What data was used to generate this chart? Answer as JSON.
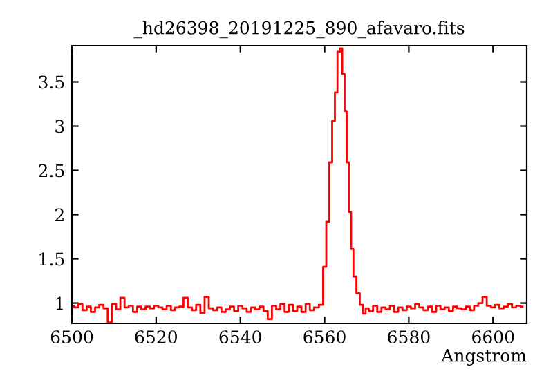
{
  "chart_data": {
    "type": "step",
    "title": "_hd26398_20191225_890_afavaro.fits",
    "xlabel": "Angstrom",
    "xlim": [
      6500,
      6608
    ],
    "ylim": [
      0.77,
      3.91
    ],
    "xticks": [
      6500,
      6520,
      6540,
      6560,
      6580,
      6600
    ],
    "yticks": [
      1,
      1.5,
      2,
      2.5,
      3,
      3.5
    ],
    "grid": false,
    "legend": false,
    "series": [
      {
        "color": "#ff0000",
        "x": [
          6500,
          6501,
          6502,
          6503,
          6504,
          6505,
          6506,
          6507,
          6508,
          6509,
          6510,
          6511,
          6512,
          6513,
          6514,
          6515,
          6516,
          6517,
          6518,
          6519,
          6520,
          6521,
          6522,
          6523,
          6524,
          6525,
          6526,
          6527,
          6528,
          6529,
          6530,
          6531,
          6532,
          6533,
          6534,
          6535,
          6536,
          6537,
          6538,
          6539,
          6540,
          6541,
          6542,
          6543,
          6544,
          6545,
          6546,
          6547,
          6548,
          6549,
          6550,
          6551,
          6552,
          6553,
          6554,
          6555,
          6556,
          6557,
          6558,
          6559.3,
          6560.0,
          6560.8,
          6561.4,
          6562.2,
          6562.7,
          6563.4,
          6563.9,
          6564.5,
          6565.0,
          6565.5,
          6566.0,
          6566.6,
          6567.1,
          6568.0,
          6568.7,
          6569.5,
          6570,
          6571,
          6572,
          6573,
          6574,
          6575,
          6576,
          6577,
          6578,
          6579,
          6580,
          6581,
          6582,
          6583,
          6584,
          6585,
          6586,
          6587,
          6588,
          6589,
          6590,
          6591,
          6592,
          6593,
          6594,
          6595,
          6596,
          6597,
          6598,
          6599,
          6600,
          6601,
          6602,
          6603,
          6604,
          6605,
          6606,
          6607
        ],
        "values": [
          0.97,
          0.95,
          0.99,
          0.92,
          0.96,
          0.9,
          0.95,
          0.98,
          0.94,
          0.78,
          0.99,
          0.93,
          1.06,
          0.95,
          0.97,
          0.9,
          0.96,
          0.93,
          0.96,
          0.94,
          0.97,
          0.95,
          0.93,
          0.97,
          0.92,
          0.95,
          0.96,
          1.06,
          0.95,
          0.92,
          0.98,
          0.89,
          1.07,
          0.94,
          0.92,
          0.95,
          0.9,
          0.93,
          0.96,
          0.91,
          0.97,
          0.94,
          0.9,
          0.95,
          0.93,
          0.96,
          0.91,
          0.82,
          0.97,
          0.93,
          0.99,
          0.9,
          0.98,
          0.91,
          0.96,
          0.9,
          0.99,
          0.92,
          0.95,
          0.98,
          1.41,
          1.92,
          2.59,
          3.06,
          3.38,
          3.84,
          3.88,
          3.59,
          3.17,
          2.59,
          2.03,
          1.61,
          1.3,
          1.11,
          0.98,
          0.88,
          0.94,
          0.91,
          0.97,
          0.9,
          0.95,
          0.93,
          0.97,
          0.9,
          0.95,
          0.92,
          0.96,
          0.94,
          0.99,
          0.95,
          0.92,
          0.96,
          0.9,
          0.97,
          0.93,
          0.95,
          0.91,
          0.96,
          0.94,
          0.93,
          0.96,
          0.92,
          0.97,
          1.0,
          1.07,
          0.97,
          0.95,
          0.98,
          0.94,
          0.96,
          0.99,
          0.95,
          0.97,
          0.96
        ]
      }
    ]
  }
}
